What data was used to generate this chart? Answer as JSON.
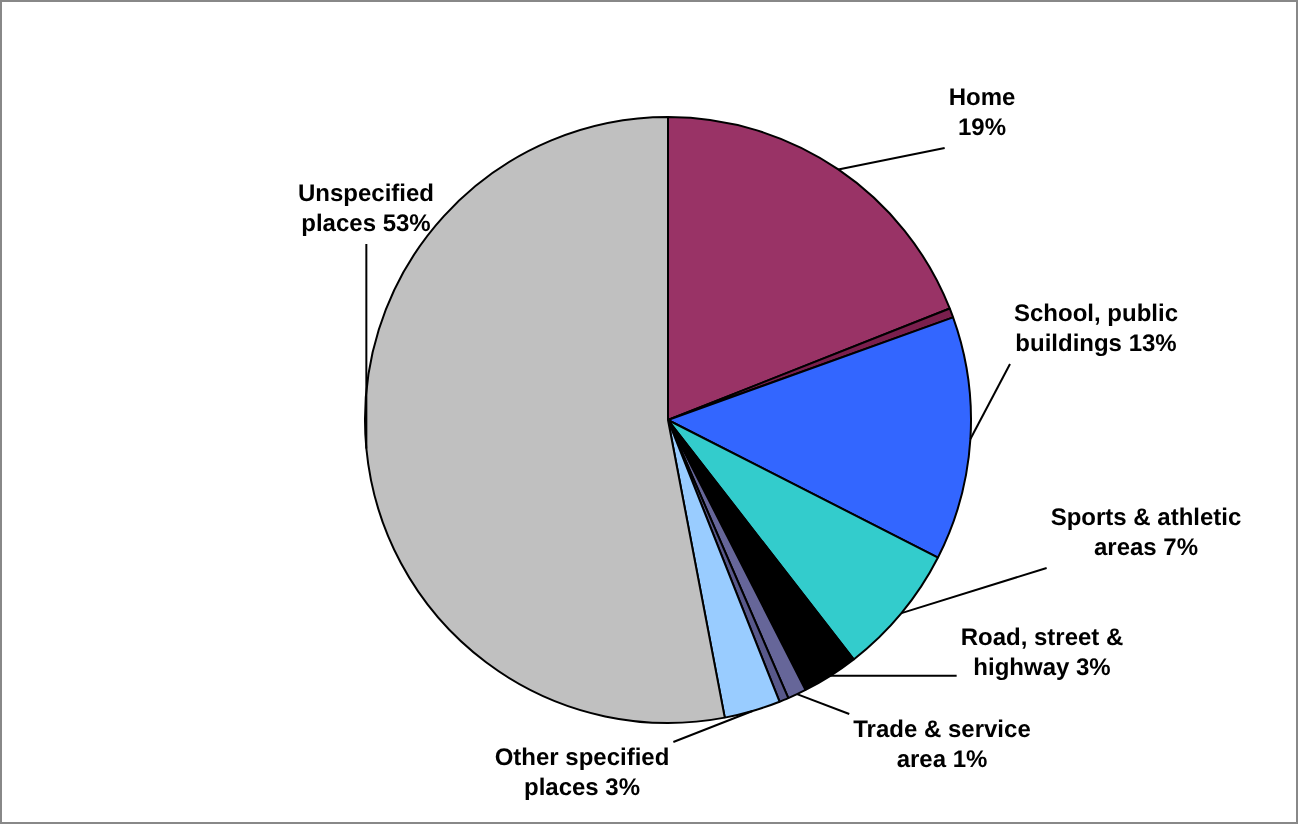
{
  "chart_data": {
    "type": "pie",
    "categories": [
      "Home",
      null,
      "School, public buildings",
      "Sports & athletic areas",
      "Road, street & highway",
      "Trade & service area",
      null,
      "Other specified places",
      "Unspecified places"
    ],
    "values": [
      19,
      0.5,
      13,
      7,
      3,
      1,
      0.5,
      3,
      53
    ],
    "value_labels": [
      "19%",
      null,
      "13%",
      "7%",
      "3%",
      "1%",
      null,
      "3%",
      "53%"
    ],
    "colors": [
      "#993366",
      "#7a1f4d",
      "#3366ff",
      "#33cccc",
      "#000000",
      "#666699",
      "#58588a",
      "#99ccff",
      "#c0c0c0"
    ],
    "legend": false
  }
}
